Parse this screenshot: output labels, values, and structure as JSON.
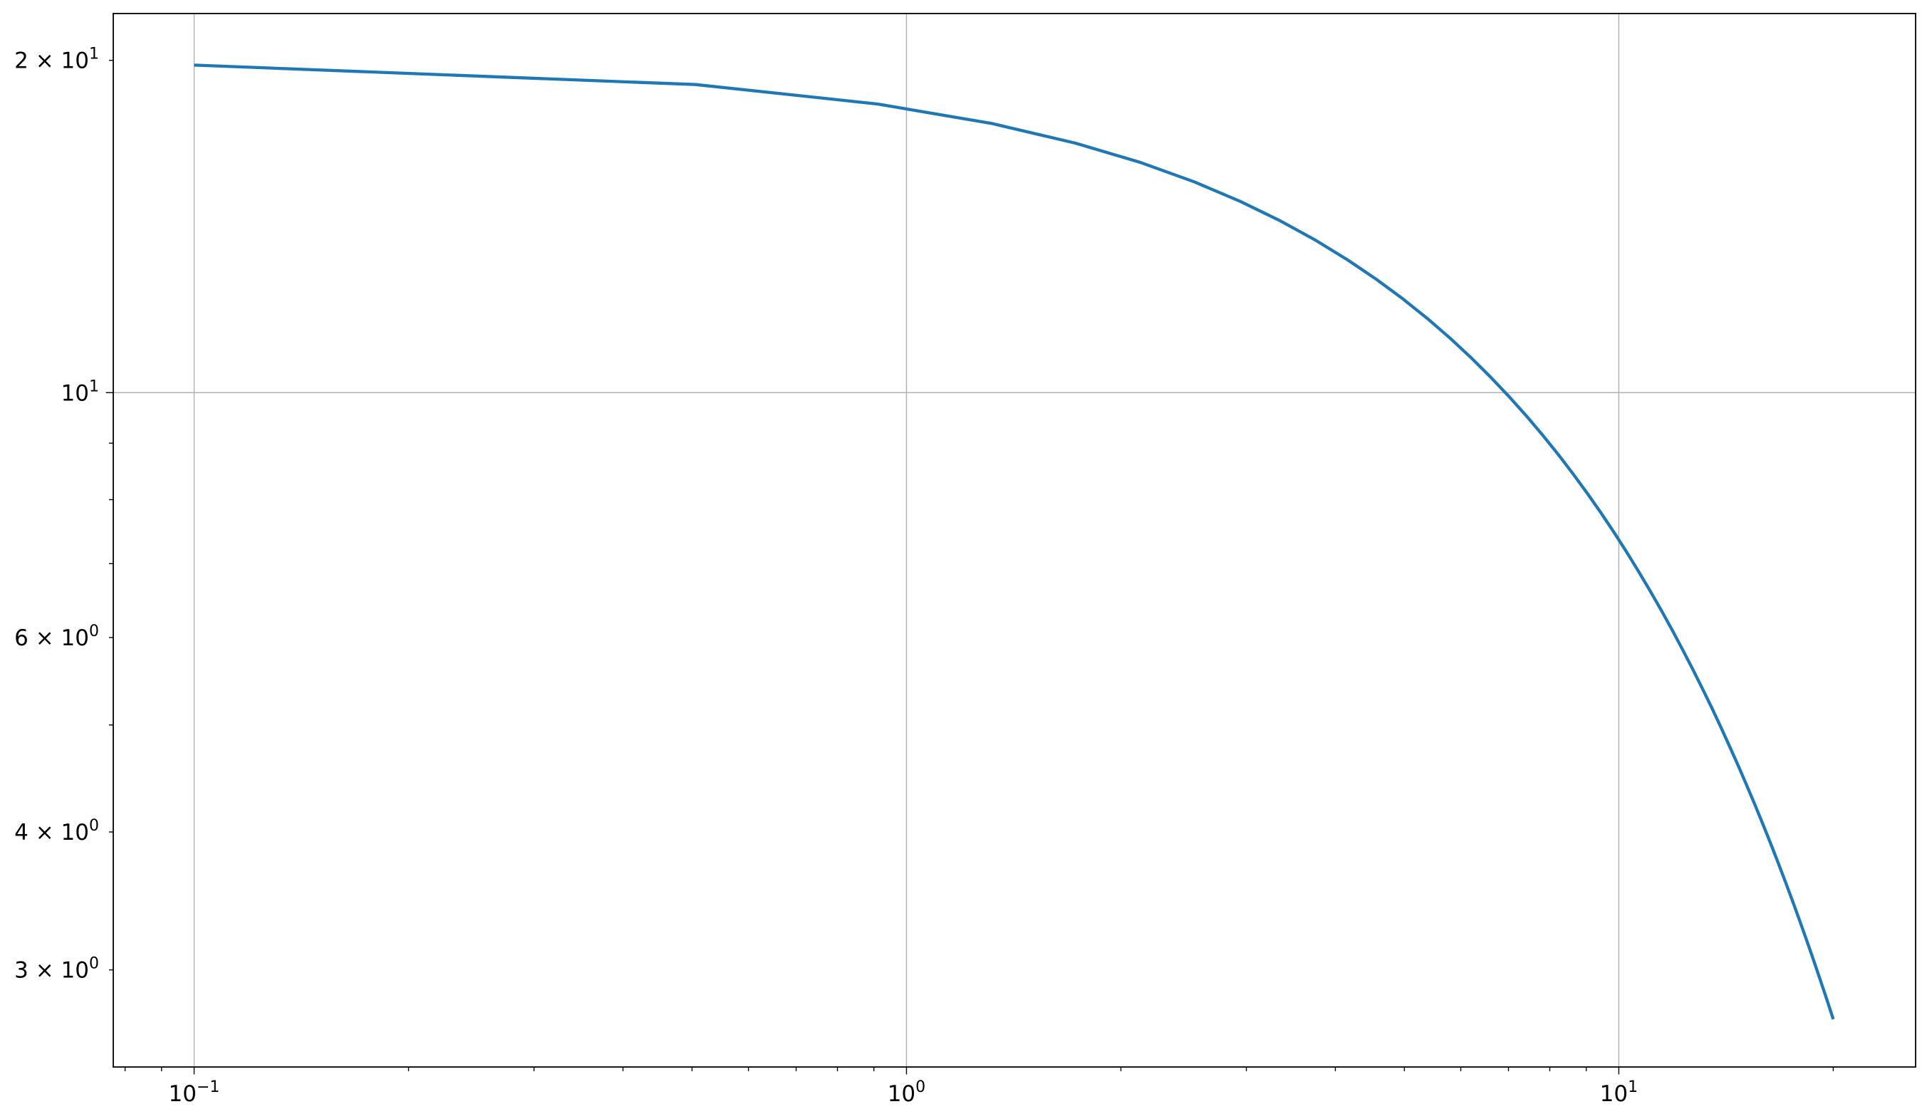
{
  "chart_data": {
    "type": "line",
    "title": "",
    "xlabel": "",
    "ylabel": "",
    "xscale": "log",
    "yscale": "log",
    "xlim": [
      0.077,
      26.1
    ],
    "ylim": [
      2.45,
      22.05
    ],
    "grid": true,
    "x_tick_labels": [
      {
        "value": 0.1,
        "base": "10",
        "exp": "−1"
      },
      {
        "value": 1,
        "base": "10",
        "exp": "0"
      },
      {
        "value": 10,
        "base": "10",
        "exp": "1"
      }
    ],
    "y_tick_labels": [
      {
        "value": 20,
        "mant": "2 × ",
        "base": "10",
        "exp": "1"
      },
      {
        "value": 10,
        "mant": "",
        "base": "10",
        "exp": "1"
      },
      {
        "value": 6,
        "mant": "6 × ",
        "base": "10",
        "exp": "0"
      },
      {
        "value": 4,
        "mant": "4 × ",
        "base": "10",
        "exp": "0"
      },
      {
        "value": 3,
        "mant": "3 × ",
        "base": "10",
        "exp": "0"
      }
    ],
    "series": [
      {
        "color": "#1f77b4",
        "x": [
          0.1,
          0.506,
          0.912,
          1.318,
          1.724,
          2.131,
          2.537,
          2.943,
          3.349,
          3.755,
          4.161,
          4.567,
          4.973,
          5.38,
          5.786,
          6.192,
          6.598,
          7.004,
          7.41,
          7.816,
          8.222,
          8.629,
          9.035,
          9.441,
          9.847,
          10.253,
          10.659,
          11.065,
          11.471,
          11.878,
          12.284,
          12.69,
          13.096,
          13.502,
          13.908,
          14.314,
          14.72,
          15.127,
          15.533,
          15.939,
          16.345,
          16.751,
          17.157,
          17.563,
          17.969,
          18.376,
          18.782,
          19.188,
          19.594,
          20.0
        ],
        "y": [
          19.801,
          19.013,
          18.256,
          17.53,
          16.832,
          16.162,
          15.519,
          14.901,
          14.308,
          13.739,
          13.192,
          12.667,
          12.163,
          11.679,
          11.214,
          10.768,
          10.339,
          9.928,
          9.533,
          9.153,
          8.789,
          8.439,
          8.103,
          7.781,
          7.471,
          7.174,
          6.888,
          6.614,
          6.351,
          6.098,
          5.855,
          5.622,
          5.398,
          5.184,
          4.977,
          4.779,
          4.589,
          4.406,
          4.231,
          4.063,
          3.901,
          3.746,
          3.597,
          3.453,
          3.316,
          3.184,
          3.057,
          2.935,
          2.819,
          2.707
        ]
      }
    ]
  }
}
